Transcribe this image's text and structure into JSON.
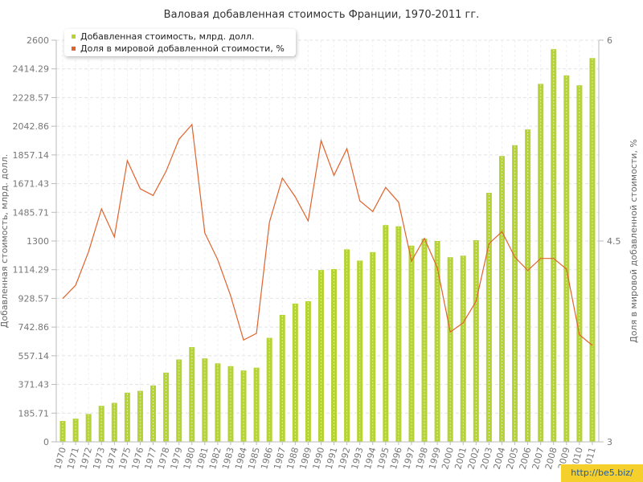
{
  "chart_data": {
    "type": "bar+line",
    "title": "Валовая добавленная стоимость Франции, 1970-2011 гг.",
    "ylabel_left": "Добавленная стоимость, млрд. долл.",
    "ylabel_right": "Доля в мировой добавленной стоимости, %",
    "ylim_left": [
      0,
      2600
    ],
    "ylim_right": [
      3,
      6
    ],
    "yticks_left": [
      "0",
      "185.71",
      "371.43",
      "557.14",
      "742.86",
      "928.57",
      "1114.29",
      "1300",
      "1485.71",
      "1671.43",
      "1857.14",
      "2042.86",
      "2228.57",
      "2414.29",
      "2600"
    ],
    "yticks_right": [
      "3",
      "4.5",
      "6"
    ],
    "categories": [
      "1970",
      "1971",
      "1972",
      "1973",
      "1974",
      "1975",
      "1976",
      "1977",
      "1978",
      "1979",
      "1980",
      "1981",
      "1982",
      "1983",
      "1984",
      "1985",
      "1986",
      "1987",
      "1988",
      "1989",
      "1990",
      "1991",
      "1992",
      "1993",
      "1994",
      "1995",
      "1996",
      "1997",
      "1998",
      "1999",
      "2000",
      "2001",
      "2002",
      "2003",
      "2004",
      "2005",
      "2006",
      "2007",
      "2008",
      "2009",
      "2010",
      "2011"
    ],
    "series": [
      {
        "name": "Добавленная стоимость, млрд. долл.",
        "type": "bar",
        "color": "#b5d334",
        "axis": "left",
        "values": [
          135,
          150,
          180,
          233,
          252,
          318,
          330,
          365,
          448,
          533,
          613,
          540,
          508,
          490,
          462,
          480,
          673,
          822,
          895,
          910,
          1112,
          1118,
          1246,
          1173,
          1228,
          1403,
          1395,
          1270,
          1315,
          1300,
          1195,
          1205,
          1305,
          1612,
          1850,
          1920,
          2022,
          2317,
          2542,
          2372,
          2308,
          2484
        ]
      },
      {
        "name": "Доля в мировой добавленной стоимости, %",
        "type": "line",
        "color": "#e0622c",
        "axis": "right",
        "values": [
          4.07,
          4.17,
          4.42,
          4.74,
          4.53,
          5.1,
          4.89,
          4.84,
          5.02,
          5.26,
          5.37,
          4.56,
          4.36,
          4.09,
          3.76,
          3.81,
          4.64,
          4.97,
          4.83,
          4.65,
          5.25,
          4.99,
          5.19,
          4.8,
          4.72,
          4.9,
          4.79,
          4.35,
          4.52,
          4.3,
          3.82,
          3.89,
          4.05,
          4.48,
          4.57,
          4.38,
          4.28,
          4.37,
          4.37,
          4.29,
          3.8,
          3.72
        ]
      }
    ],
    "grid": true,
    "legend_position": "top-left"
  },
  "watermark": "http://be5.biz/"
}
